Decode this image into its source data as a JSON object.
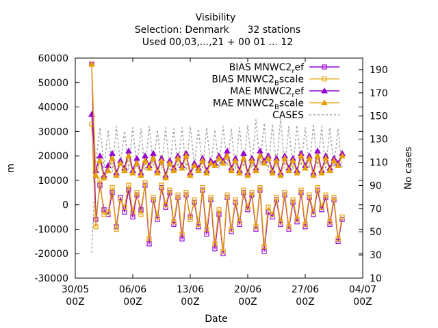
{
  "chart_data": {
    "type": "line",
    "title_lines": [
      "Visibility",
      "Selection: Denmark      32 stations",
      "Used 00,03,...,21 + 00 01 ... 12"
    ],
    "xlabel": "Date",
    "ylabel": "m",
    "y2label": "No cases",
    "xlim": [
      "2025-05-30T00:00",
      "2025-07-04T00:00"
    ],
    "ylim": [
      -30000,
      60000
    ],
    "y2lim": [
      10,
      200
    ],
    "x_ticks": [
      {
        "date": "2025-05-30T00:00",
        "line1": "30/05",
        "line2": "00Z"
      },
      {
        "date": "2025-06-06T00:00",
        "line1": "06/06",
        "line2": "00Z"
      },
      {
        "date": "2025-06-13T00:00",
        "line1": "13/06",
        "line2": "00Z"
      },
      {
        "date": "2025-06-20T00:00",
        "line1": "20/06",
        "line2": "00Z"
      },
      {
        "date": "2025-06-27T00:00",
        "line1": "27/06",
        "line2": "00Z"
      },
      {
        "date": "2025-07-04T00:00",
        "line1": "04/07",
        "line2": "00Z"
      }
    ],
    "y_ticks": [
      "-30000",
      "-20000",
      "-10000",
      "0",
      "10000",
      "20000",
      "30000",
      "40000",
      "50000",
      "60000"
    ],
    "y2_ticks": [
      "10",
      "30",
      "50",
      "70",
      "90",
      "110",
      "130",
      "150",
      "170",
      "190"
    ],
    "grid": false,
    "legend_position": "top-right",
    "legend": [
      {
        "base": "BIAS MNWC2",
        "sub": "r",
        "tail": "ef",
        "series": "bias_ref"
      },
      {
        "base": "BIAS MNWC2",
        "sub": "B",
        "tail": "scale",
        "series": "bias_bscale"
      },
      {
        "base": "MAE MNWC2",
        "sub": "r",
        "tail": "ef",
        "series": "mae_ref"
      },
      {
        "base": "MAE MNWC2",
        "sub": "B",
        "tail": "scale",
        "series": "mae_bscale"
      },
      {
        "base": "CASES",
        "sub": "",
        "tail": "",
        "series": "cases"
      }
    ],
    "series": {
      "bias_ref": {
        "color": "#9400d3",
        "marker": "square",
        "axis": "y",
        "x": [
          "2025-06-01T00:00",
          "2025-06-01T12:00",
          "2025-06-02T00:00",
          "2025-06-02T12:00",
          "2025-06-03T00:00",
          "2025-06-03T12:00",
          "2025-06-04T00:00",
          "2025-06-04T12:00",
          "2025-06-05T00:00",
          "2025-06-05T12:00",
          "2025-06-06T00:00",
          "2025-06-06T12:00",
          "2025-06-07T00:00",
          "2025-06-07T12:00",
          "2025-06-08T00:00",
          "2025-06-08T12:00",
          "2025-06-09T00:00",
          "2025-06-09T12:00",
          "2025-06-10T00:00",
          "2025-06-10T12:00",
          "2025-06-11T00:00",
          "2025-06-11T12:00",
          "2025-06-12T00:00",
          "2025-06-12T12:00",
          "2025-06-13T00:00",
          "2025-06-13T12:00",
          "2025-06-14T00:00",
          "2025-06-14T12:00",
          "2025-06-15T00:00",
          "2025-06-15T12:00",
          "2025-06-16T00:00",
          "2025-06-16T12:00",
          "2025-06-17T00:00",
          "2025-06-17T12:00",
          "2025-06-18T00:00",
          "2025-06-18T12:00",
          "2025-06-19T00:00",
          "2025-06-19T12:00",
          "2025-06-20T00:00",
          "2025-06-20T12:00",
          "2025-06-21T00:00",
          "2025-06-21T12:00",
          "2025-06-22T00:00",
          "2025-06-22T12:00",
          "2025-06-23T00:00",
          "2025-06-23T12:00",
          "2025-06-24T00:00",
          "2025-06-24T12:00",
          "2025-06-25T00:00",
          "2025-06-25T12:00",
          "2025-06-26T00:00",
          "2025-06-26T12:00",
          "2025-06-27T00:00",
          "2025-06-27T12:00",
          "2025-06-28T00:00",
          "2025-06-28T12:00",
          "2025-06-29T00:00",
          "2025-06-29T12:00",
          "2025-06-30T00:00",
          "2025-06-30T12:00",
          "2025-07-01T00:00",
          "2025-07-01T12:00"
        ],
        "y": [
          57500,
          -6000,
          8000,
          -2000,
          -4000,
          5000,
          -9000,
          3000,
          -3000,
          6000,
          -5000,
          4000,
          -2000,
          8000,
          -16000,
          2000,
          -6000,
          7000,
          -1000,
          5000,
          -8000,
          3000,
          -14000,
          4000,
          -5000,
          1000,
          -9000,
          6000,
          -12000,
          2000,
          -18000,
          -4000,
          -20000,
          3000,
          -11000,
          1000,
          -8000,
          5000,
          -2000,
          4000,
          -10000,
          6000,
          -19000,
          -3000,
          -5000,
          2000,
          -8000,
          4000,
          -10000,
          1000,
          -7000,
          5000,
          -9000,
          3000,
          -4000,
          6000,
          -2000,
          3000,
          -8000,
          2000,
          -15000,
          -6000
        ]
      },
      "bias_bscale": {
        "color": "#e69f00",
        "marker": "square",
        "axis": "y",
        "x": [
          "2025-06-01T00:00",
          "2025-06-01T12:00",
          "2025-06-02T00:00",
          "2025-06-02T12:00",
          "2025-06-03T00:00",
          "2025-06-03T12:00",
          "2025-06-04T00:00",
          "2025-06-04T12:00",
          "2025-06-05T00:00",
          "2025-06-05T12:00",
          "2025-06-06T00:00",
          "2025-06-06T12:00",
          "2025-06-07T00:00",
          "2025-06-07T12:00",
          "2025-06-08T00:00",
          "2025-06-08T12:00",
          "2025-06-09T00:00",
          "2025-06-09T12:00",
          "2025-06-10T00:00",
          "2025-06-10T12:00",
          "2025-06-11T00:00",
          "2025-06-11T12:00",
          "2025-06-12T00:00",
          "2025-06-12T12:00",
          "2025-06-13T00:00",
          "2025-06-13T12:00",
          "2025-06-14T00:00",
          "2025-06-14T12:00",
          "2025-06-15T00:00",
          "2025-06-15T12:00",
          "2025-06-16T00:00",
          "2025-06-16T12:00",
          "2025-06-17T00:00",
          "2025-06-17T12:00",
          "2025-06-18T00:00",
          "2025-06-18T12:00",
          "2025-06-19T00:00",
          "2025-06-19T12:00",
          "2025-06-20T00:00",
          "2025-06-20T12:00",
          "2025-06-21T00:00",
          "2025-06-21T12:00",
          "2025-06-22T00:00",
          "2025-06-22T12:00",
          "2025-06-23T00:00",
          "2025-06-23T12:00",
          "2025-06-24T00:00",
          "2025-06-24T12:00",
          "2025-06-25T00:00",
          "2025-06-25T12:00",
          "2025-06-26T00:00",
          "2025-06-26T12:00",
          "2025-06-27T00:00",
          "2025-06-27T12:00",
          "2025-06-28T00:00",
          "2025-06-28T12:00",
          "2025-06-29T00:00",
          "2025-06-29T12:00",
          "2025-06-30T00:00",
          "2025-06-30T12:00",
          "2025-07-01T00:00",
          "2025-07-01T12:00"
        ],
        "y": [
          33000,
          -9000,
          10000,
          -4000,
          -3000,
          7000,
          -10000,
          2000,
          -1000,
          8000,
          -3000,
          5000,
          -4000,
          9000,
          -14000,
          3000,
          -5000,
          8000,
          0,
          6000,
          -7000,
          4000,
          -12000,
          5000,
          -6000,
          2000,
          -8000,
          7000,
          -10000,
          3000,
          -16000,
          -2000,
          -19000,
          4000,
          -10000,
          2000,
          -7000,
          6000,
          -1000,
          5000,
          -9000,
          7000,
          -17000,
          -1000,
          -4000,
          3000,
          -7000,
          5000,
          -9000,
          2000,
          -6000,
          6000,
          -8000,
          4000,
          -3000,
          7000,
          -1000,
          4000,
          -7000,
          3000,
          -14000,
          -5000
        ]
      },
      "mae_ref": {
        "color": "#9400d3",
        "marker": "triangle",
        "axis": "y",
        "x": [
          "2025-06-01T00:00",
          "2025-06-01T12:00",
          "2025-06-02T00:00",
          "2025-06-02T12:00",
          "2025-06-03T00:00",
          "2025-06-03T12:00",
          "2025-06-04T00:00",
          "2025-06-04T12:00",
          "2025-06-05T00:00",
          "2025-06-05T12:00",
          "2025-06-06T00:00",
          "2025-06-06T12:00",
          "2025-06-07T00:00",
          "2025-06-07T12:00",
          "2025-06-08T00:00",
          "2025-06-08T12:00",
          "2025-06-09T00:00",
          "2025-06-09T12:00",
          "2025-06-10T00:00",
          "2025-06-10T12:00",
          "2025-06-11T00:00",
          "2025-06-11T12:00",
          "2025-06-12T00:00",
          "2025-06-12T12:00",
          "2025-06-13T00:00",
          "2025-06-13T12:00",
          "2025-06-14T00:00",
          "2025-06-14T12:00",
          "2025-06-15T00:00",
          "2025-06-15T12:00",
          "2025-06-16T00:00",
          "2025-06-16T12:00",
          "2025-06-17T00:00",
          "2025-06-17T12:00",
          "2025-06-18T00:00",
          "2025-06-18T12:00",
          "2025-06-19T00:00",
          "2025-06-19T12:00",
          "2025-06-20T00:00",
          "2025-06-20T12:00",
          "2025-06-21T00:00",
          "2025-06-21T12:00",
          "2025-06-22T00:00",
          "2025-06-22T12:00",
          "2025-06-23T00:00",
          "2025-06-23T12:00",
          "2025-06-24T00:00",
          "2025-06-24T12:00",
          "2025-06-25T00:00",
          "2025-06-25T12:00",
          "2025-06-26T00:00",
          "2025-06-26T12:00",
          "2025-06-27T00:00",
          "2025-06-27T12:00",
          "2025-06-28T00:00",
          "2025-06-28T12:00",
          "2025-06-29T00:00",
          "2025-06-29T12:00",
          "2025-06-30T00:00",
          "2025-06-30T12:00",
          "2025-07-01T00:00",
          "2025-07-01T12:00"
        ],
        "y": [
          37000,
          14000,
          20000,
          12000,
          16000,
          21000,
          13000,
          18000,
          15000,
          22000,
          14000,
          19000,
          13000,
          20000,
          16000,
          21000,
          14000,
          19000,
          12000,
          18000,
          15000,
          20000,
          16000,
          21000,
          13000,
          17000,
          15000,
          19000,
          14000,
          18000,
          17000,
          20000,
          18000,
          22000,
          15000,
          19000,
          14000,
          21000,
          13000,
          19000,
          15000,
          22000,
          18000,
          20000,
          14000,
          19000,
          13000,
          20000,
          15000,
          19000,
          14000,
          21000,
          16000,
          20000,
          13000,
          22000,
          14000,
          20000,
          15000,
          19000,
          17000,
          21000
        ]
      },
      "mae_bscale": {
        "color": "#e69f00",
        "marker": "triangle",
        "axis": "y",
        "x": [
          "2025-06-01T00:00",
          "2025-06-01T12:00",
          "2025-06-02T00:00",
          "2025-06-02T12:00",
          "2025-06-03T00:00",
          "2025-06-03T12:00",
          "2025-06-04T00:00",
          "2025-06-04T12:00",
          "2025-06-05T00:00",
          "2025-06-05T12:00",
          "2025-06-06T00:00",
          "2025-06-06T12:00",
          "2025-06-07T00:00",
          "2025-06-07T12:00",
          "2025-06-08T00:00",
          "2025-06-08T12:00",
          "2025-06-09T00:00",
          "2025-06-09T12:00",
          "2025-06-10T00:00",
          "2025-06-10T12:00",
          "2025-06-11T00:00",
          "2025-06-11T12:00",
          "2025-06-12T00:00",
          "2025-06-12T12:00",
          "2025-06-13T00:00",
          "2025-06-13T12:00",
          "2025-06-14T00:00",
          "2025-06-14T12:00",
          "2025-06-15T00:00",
          "2025-06-15T12:00",
          "2025-06-16T00:00",
          "2025-06-16T12:00",
          "2025-06-17T00:00",
          "2025-06-17T12:00",
          "2025-06-18T00:00",
          "2025-06-18T12:00",
          "2025-06-19T00:00",
          "2025-06-19T12:00",
          "2025-06-20T00:00",
          "2025-06-20T12:00",
          "2025-06-21T00:00",
          "2025-06-21T12:00",
          "2025-06-22T00:00",
          "2025-06-22T12:00",
          "2025-06-23T00:00",
          "2025-06-23T12:00",
          "2025-06-24T00:00",
          "2025-06-24T12:00",
          "2025-06-25T00:00",
          "2025-06-25T12:00",
          "2025-06-26T00:00",
          "2025-06-26T12:00",
          "2025-06-27T00:00",
          "2025-06-27T12:00",
          "2025-06-28T00:00",
          "2025-06-28T12:00",
          "2025-06-29T00:00",
          "2025-06-29T12:00",
          "2025-06-30T00:00",
          "2025-06-30T12:00",
          "2025-07-01T00:00",
          "2025-07-01T12:00"
        ],
        "y": [
          57500,
          12000,
          18000,
          11000,
          14000,
          19000,
          12000,
          17000,
          14000,
          20000,
          13000,
          17000,
          12000,
          18000,
          15000,
          19000,
          13000,
          18000,
          11000,
          17000,
          14000,
          19000,
          15000,
          20000,
          12000,
          16000,
          14000,
          18000,
          13000,
          17000,
          16000,
          19000,
          17000,
          20000,
          14000,
          18000,
          13000,
          19000,
          12000,
          18000,
          14000,
          20000,
          17000,
          19000,
          13000,
          18000,
          12000,
          19000,
          14000,
          18000,
          13000,
          20000,
          15000,
          19000,
          12000,
          20000,
          13000,
          19000,
          14000,
          18000,
          16000,
          20000
        ]
      },
      "cases": {
        "color": "#a0a0a0",
        "dashed": true,
        "axis": "y2",
        "x": [
          "2025-06-01T00:00",
          "2025-06-01T12:00",
          "2025-06-02T00:00",
          "2025-06-02T12:00",
          "2025-06-03T00:00",
          "2025-06-03T12:00",
          "2025-06-04T00:00",
          "2025-06-04T12:00",
          "2025-06-05T00:00",
          "2025-06-05T12:00",
          "2025-06-06T00:00",
          "2025-06-06T12:00",
          "2025-06-07T00:00",
          "2025-06-07T12:00",
          "2025-06-08T00:00",
          "2025-06-08T12:00",
          "2025-06-09T00:00",
          "2025-06-09T12:00",
          "2025-06-10T00:00",
          "2025-06-10T12:00",
          "2025-06-11T00:00",
          "2025-06-11T12:00",
          "2025-06-12T00:00",
          "2025-06-12T12:00",
          "2025-06-13T00:00",
          "2025-06-13T12:00",
          "2025-06-14T00:00",
          "2025-06-14T12:00",
          "2025-06-15T00:00",
          "2025-06-15T12:00",
          "2025-06-16T00:00",
          "2025-06-16T12:00",
          "2025-06-17T00:00",
          "2025-06-17T12:00",
          "2025-06-18T00:00",
          "2025-06-18T12:00",
          "2025-06-19T00:00",
          "2025-06-19T12:00",
          "2025-06-20T00:00",
          "2025-06-20T12:00",
          "2025-06-21T00:00",
          "2025-06-21T12:00",
          "2025-06-22T00:00",
          "2025-06-22T12:00",
          "2025-06-23T00:00",
          "2025-06-23T12:00",
          "2025-06-24T00:00",
          "2025-06-24T12:00",
          "2025-06-25T00:00",
          "2025-06-25T12:00",
          "2025-06-26T00:00",
          "2025-06-26T12:00",
          "2025-06-27T00:00",
          "2025-06-27T12:00",
          "2025-06-28T00:00",
          "2025-06-28T12:00",
          "2025-06-29T00:00",
          "2025-06-29T12:00",
          "2025-06-30T00:00",
          "2025-06-30T12:00",
          "2025-07-01T00:00",
          "2025-07-01T12:00"
        ],
        "y": [
          32,
          110,
          140,
          105,
          138,
          102,
          141,
          108,
          137,
          104,
          140,
          106,
          139,
          103,
          141,
          107,
          138,
          105,
          140,
          104,
          139,
          106,
          140,
          103,
          141,
          108,
          139,
          104,
          140,
          106,
          138,
          105,
          141,
          107,
          139,
          104,
          140,
          106,
          142,
          105,
          147,
          108,
          144,
          103,
          143,
          106,
          148,
          105,
          141,
          104,
          142,
          107,
          140,
          105,
          143,
          106,
          141,
          104,
          140,
          106,
          139,
          105
        ]
      }
    }
  }
}
